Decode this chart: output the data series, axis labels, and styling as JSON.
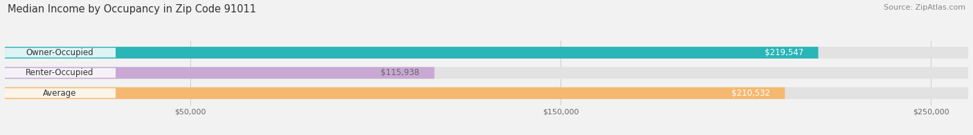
{
  "title": "Median Income by Occupancy in Zip Code 91011",
  "source": "Source: ZipAtlas.com",
  "categories": [
    "Owner-Occupied",
    "Renter-Occupied",
    "Average"
  ],
  "values": [
    219547,
    115938,
    210532
  ],
  "bar_colors": [
    "#2ab5b8",
    "#c9a8d4",
    "#f5b870"
  ],
  "value_label_colors": [
    "#ffffff",
    "#666666",
    "#ffffff"
  ],
  "value_labels": [
    "$219,547",
    "$115,938",
    "$210,532"
  ],
  "xlim_max": 260000,
  "xticks": [
    50000,
    150000,
    250000
  ],
  "xtick_labels": [
    "$50,000",
    "$150,000",
    "$250,000"
  ],
  "bg_color": "#f2f2f2",
  "bar_bg_color": "#e2e2e2",
  "title_fontsize": 10.5,
  "source_fontsize": 8,
  "cat_fontsize": 8.5,
  "value_fontsize": 8.5,
  "tick_fontsize": 8
}
